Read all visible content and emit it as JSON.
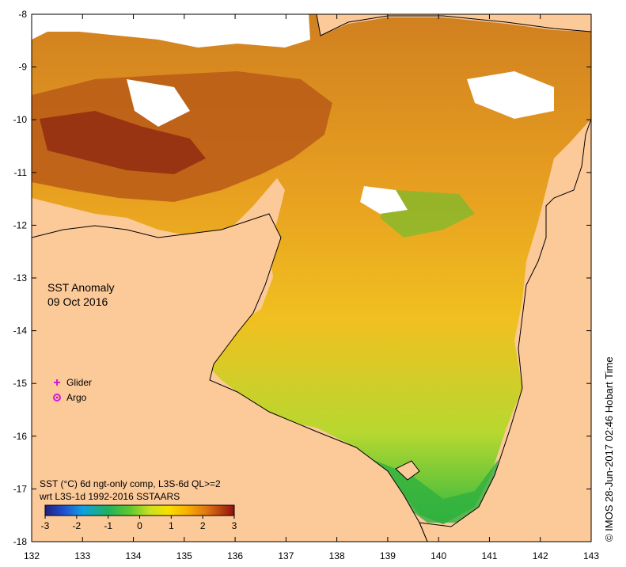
{
  "map": {
    "title": "SST Anomaly",
    "date": "09 Oct 2016",
    "colors": {
      "land": "#fcc999",
      "missing": "#ffffff",
      "coast": "#000000",
      "glider": "#d21cd2",
      "argo": "#d21cd2"
    },
    "lon_ticks": [
      "132",
      "133",
      "134",
      "135",
      "136",
      "137",
      "138",
      "139",
      "140",
      "141",
      "142",
      "143"
    ],
    "lat_ticks": [
      "-8",
      "-9",
      "-10",
      "-11",
      "-12",
      "-13",
      "-14",
      "-15",
      "-16",
      "-17",
      "-18"
    ],
    "xlim": [
      132,
      143
    ],
    "ylim": [
      -18,
      -8
    ]
  },
  "legend": {
    "glider_label": "Glider",
    "argo_label": "Argo",
    "glider_icon": "plus-dot-icon",
    "argo_icon": "circle-star-icon"
  },
  "colorbar": {
    "line1": "SST (°C) 6d ngt-only comp, L3S-6d QL>=2",
    "line2": "wrt L3S-1d 1992-2016 SSTAARS",
    "ticks": [
      "-3",
      "-2",
      "-1",
      "0",
      "1",
      "2",
      "3"
    ],
    "range": [
      -3,
      3
    ],
    "colors": [
      "#202080",
      "#2050d0",
      "#10a0e0",
      "#20b060",
      "#60c830",
      "#c8e020",
      "#f8e000",
      "#f8b000",
      "#e07810",
      "#b84010",
      "#901010"
    ]
  },
  "credit": "© IMOS 28-Jun-2017 02:46 Hobart Time"
}
